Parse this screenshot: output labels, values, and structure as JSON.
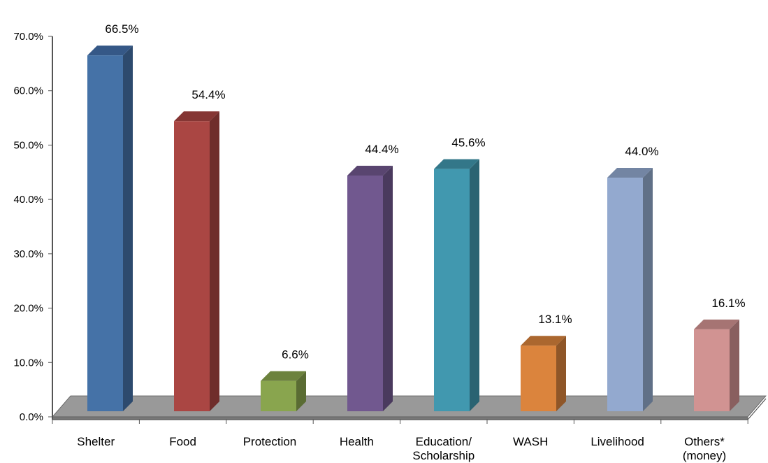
{
  "chart_data": {
    "type": "bar",
    "title": "",
    "xlabel": "",
    "ylabel": "",
    "categories": [
      "Shelter",
      "Food",
      "Protection",
      "Health",
      "Education/ Scholarship",
      "WASH",
      "Livelihood",
      "Others* (money)"
    ],
    "category_lines": [
      [
        "Shelter"
      ],
      [
        "Food"
      ],
      [
        "Protection"
      ],
      [
        "Health"
      ],
      [
        "Education/",
        "Scholarship"
      ],
      [
        "WASH"
      ],
      [
        "Livelihood"
      ],
      [
        "Others*",
        "(money)"
      ]
    ],
    "values": [
      66.5,
      54.4,
      6.6,
      44.4,
      45.6,
      13.1,
      44.0,
      16.1
    ],
    "value_labels": [
      "66.5%",
      "54.4%",
      "6.6%",
      "44.4%",
      "45.6%",
      "13.1%",
      "44.0%",
      "16.1%"
    ],
    "y_ticks": [
      0,
      10,
      20,
      30,
      40,
      50,
      60,
      70
    ],
    "y_tick_labels": [
      "0.0%",
      "10.0%",
      "20.0%",
      "30.0%",
      "40.0%",
      "50.0%",
      "60.0%",
      "70.0%"
    ],
    "ylim": [
      0,
      70
    ],
    "grid": false,
    "legend": "none",
    "style": "3d-column",
    "colors": {
      "front": [
        "#4572A7",
        "#AA4643",
        "#89A54E",
        "#71588F",
        "#4198AF",
        "#DB843D",
        "#93A9CF",
        "#D19392"
      ],
      "side": [
        "#2D4A6E",
        "#6F2D2B",
        "#5A6C33",
        "#4A3A5E",
        "#2A6372",
        "#8F5628",
        "#607087",
        "#895F5F"
      ],
      "top": [
        "#355887",
        "#853634",
        "#6C823D",
        "#594570",
        "#337789",
        "#AB672F",
        "#7385A3",
        "#A67473"
      ],
      "floor": "#999999",
      "floor_side": "#777777"
    }
  }
}
